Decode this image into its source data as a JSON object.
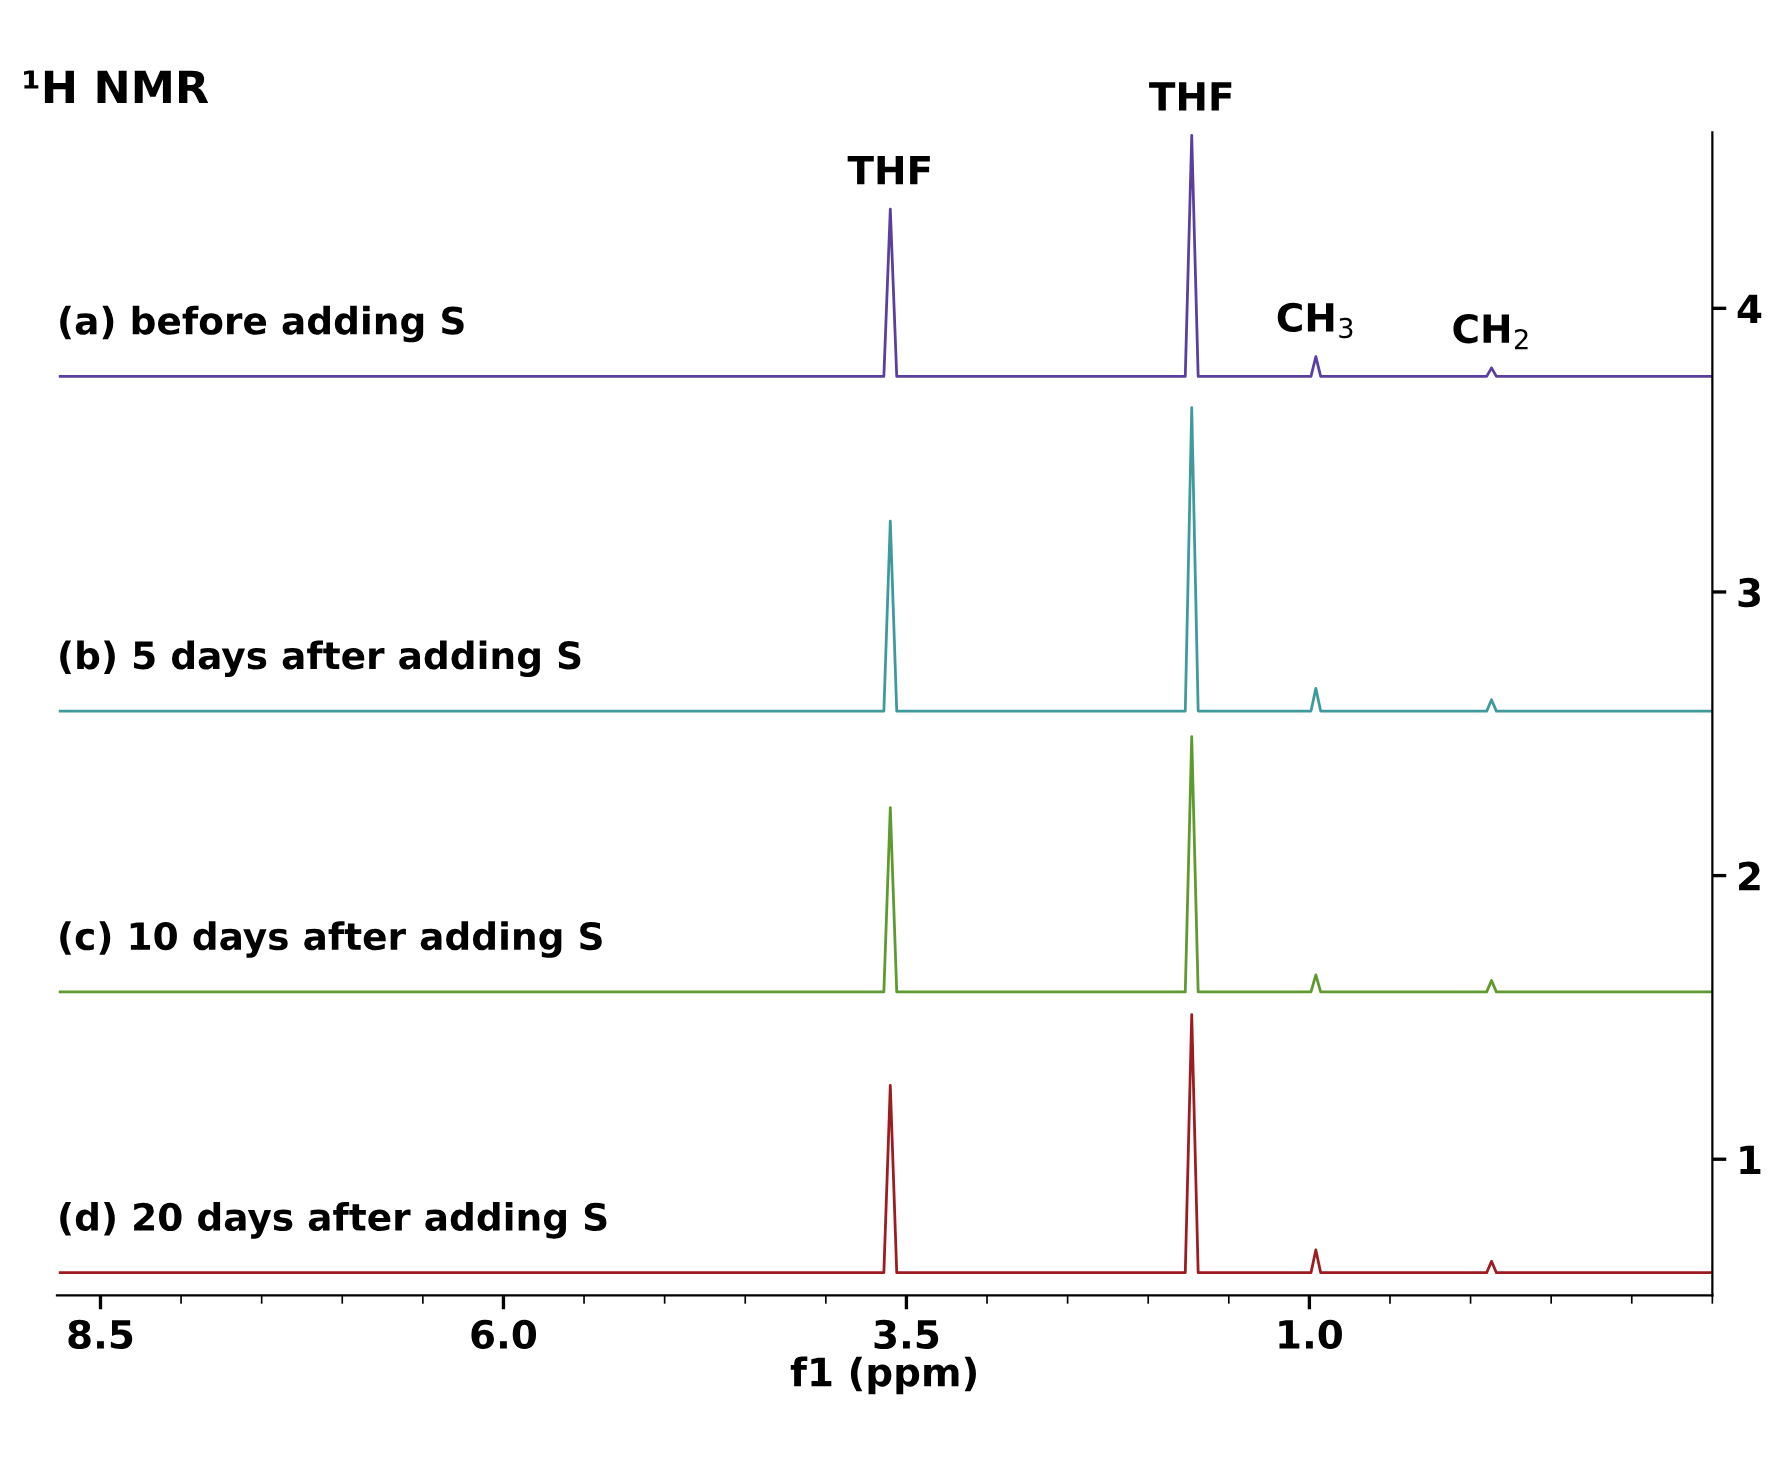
{
  "chart_data": {
    "type": "line",
    "title": "¹H NMR",
    "xlabel": "f1 (ppm)",
    "x": [
      8.75,
      3.64,
      3.6,
      3.56,
      1.77,
      1.73,
      1.69,
      0.99,
      0.96,
      0.93,
      -0.1,
      -0.13,
      -0.16,
      -1.5
    ],
    "series": [
      {
        "name": "(a) before adding S",
        "color": "#5b3f9e",
        "values": [
          3.76,
          3.76,
          4.35,
          3.76,
          3.76,
          4.61,
          3.76,
          3.76,
          3.83,
          3.76,
          3.76,
          3.79,
          3.76,
          3.76
        ]
      },
      {
        "name": "(b) 5 days after adding S",
        "color": "#3f9a9c",
        "values": [
          2.58,
          2.58,
          3.25,
          2.58,
          2.58,
          3.65,
          2.58,
          2.58,
          2.66,
          2.58,
          2.58,
          2.62,
          2.58,
          2.58
        ]
      },
      {
        "name": "(c) 10 days after adding S",
        "color": "#5e9a2e",
        "values": [
          1.59,
          1.59,
          2.24,
          1.59,
          1.59,
          2.49,
          1.59,
          1.59,
          1.65,
          1.59,
          1.59,
          1.63,
          1.59,
          1.59
        ]
      },
      {
        "name": "(d) 20 days after adding S",
        "color": "#9c1c22",
        "values": [
          0.6,
          0.6,
          1.26,
          0.6,
          0.6,
          1.51,
          0.6,
          0.6,
          0.68,
          0.6,
          0.6,
          0.64,
          0.6,
          0.6
        ]
      }
    ],
    "xlim": [
      8.77,
      -1.5
    ],
    "xticks": [
      8.5,
      {
        "value": 6,
        "label": "6.0"
      },
      3.5,
      {
        "value": 1,
        "label": "1.0"
      }
    ],
    "ylim": [
      0.52,
      4.62
    ],
    "yticks": [
      1,
      2,
      3,
      4
    ],
    "annotations": [
      {
        "text": "THF",
        "x": 3.6,
        "y": 4.35
      },
      {
        "text": "THF",
        "x": 1.73,
        "y": 4.61
      },
      {
        "text": "CH$_{3}$",
        "x": 0.96,
        "y": 3.83
      },
      {
        "text": "CH$_{2}$",
        "x": -0.13,
        "y": 3.79
      }
    ],
    "grid": false,
    "legend": false,
    "marker": "none",
    "line_style": "solid"
  }
}
